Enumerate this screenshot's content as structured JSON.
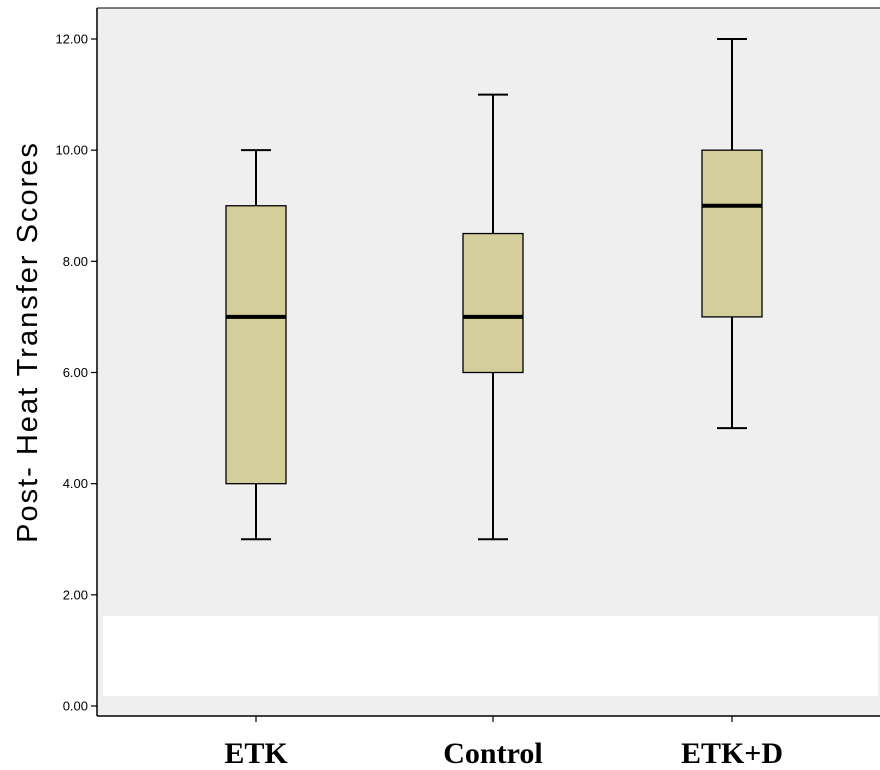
{
  "chart_data": {
    "type": "boxplot",
    "ylabel": "Post- Heat Transfer Scores",
    "xlabel": "",
    "title": "",
    "ylim": [
      0,
      12
    ],
    "yticks": [
      "0.00",
      "2.00",
      "4.00",
      "6.00",
      "8.00",
      "10.00",
      "12.00"
    ],
    "ytick_values": [
      0,
      2,
      4,
      6,
      8,
      10,
      12
    ],
    "categories": [
      "ETK",
      "Control",
      "ETK+D"
    ],
    "boxes": [
      {
        "label": "ETK",
        "min": 3,
        "q1": 4,
        "median": 7,
        "q3": 9,
        "max": 10
      },
      {
        "label": "Control",
        "min": 3,
        "q1": 6,
        "median": 7,
        "q3": 8.5,
        "max": 11
      },
      {
        "label": "ETK+D",
        "min": 5,
        "q1": 7,
        "median": 9,
        "q3": 10,
        "max": 12
      }
    ],
    "grid": false,
    "colors": {
      "plot_background": "#efefef",
      "box_fill": "#d3ce9a",
      "box_stroke": "#000000"
    }
  }
}
